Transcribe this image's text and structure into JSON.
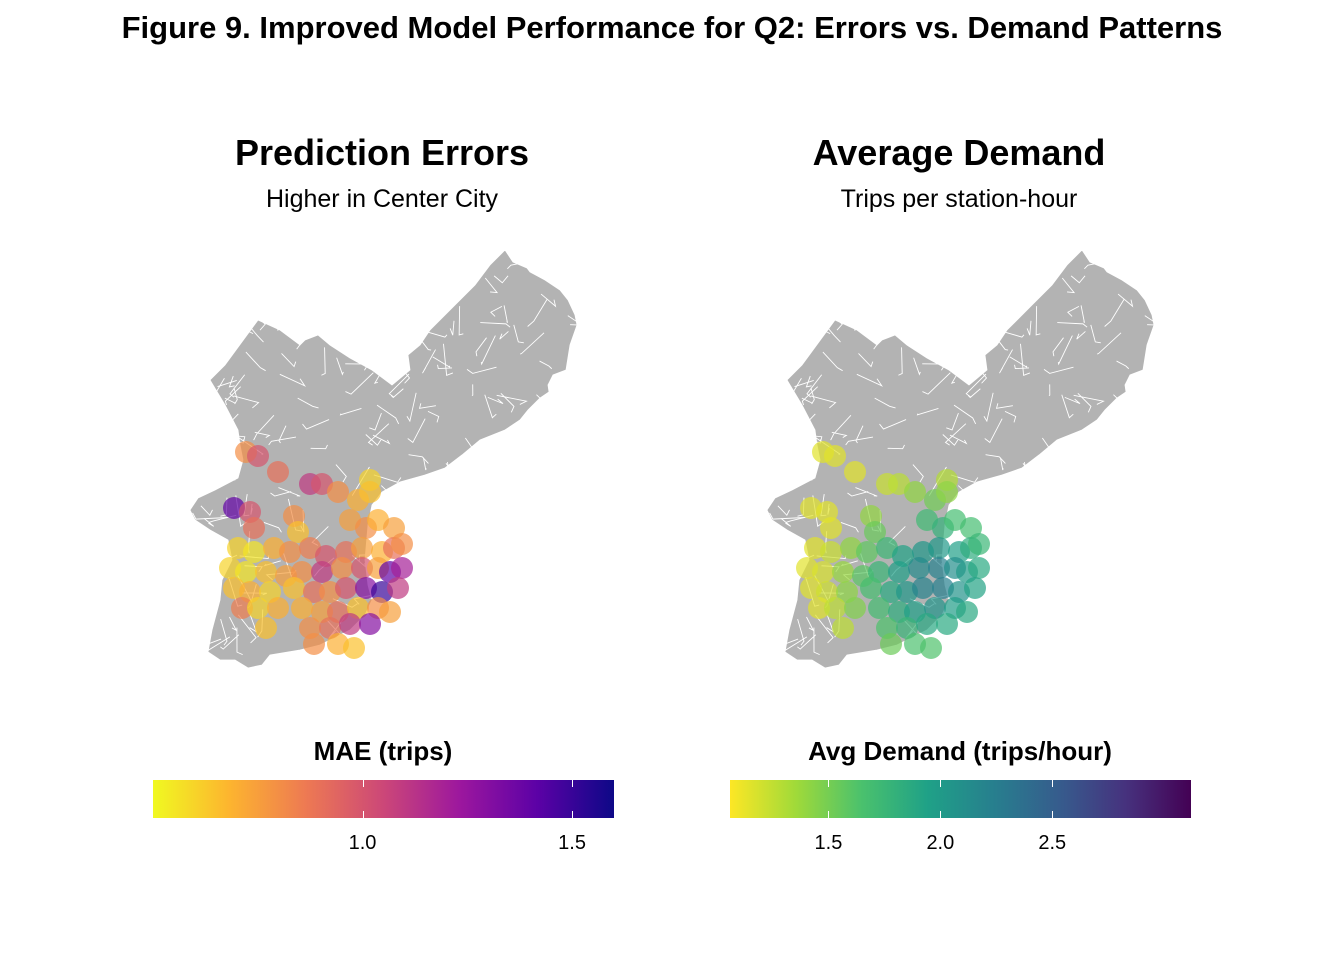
{
  "figure_title": "Figure 9. Improved Model Performance for Q2: Errors vs. Demand Patterns",
  "chart_data": [
    {
      "type": "map",
      "title": "Prediction Errors",
      "subtitle": "Higher in Center City",
      "region": "Philadelphia census tracts (gray, white borders)",
      "legend": {
        "title": "MAE (trips)",
        "palette": "plasma (reversed)",
        "colors": [
          "#f0f921",
          "#fdb42f",
          "#ed7953",
          "#cc4778",
          "#9c179e",
          "#5c01a6",
          "#0d0887"
        ],
        "range": [
          0.5,
          1.6
        ],
        "ticks": [
          "1.0",
          "1.5"
        ],
        "tick_values": [
          1.0,
          1.5
        ],
        "placement": "bottom"
      },
      "points_note": "Station points mostly orange/yellow (MAE ~0.6-0.9); highest (purple, ~1.3-1.5) in Center City east",
      "points": [
        {
          "x": 0.14,
          "y": 0.63,
          "v": 0.8
        },
        {
          "x": 0.17,
          "y": 0.64,
          "v": 1.0
        },
        {
          "x": 0.22,
          "y": 0.68,
          "v": 0.9
        },
        {
          "x": 0.3,
          "y": 0.71,
          "v": 1.1
        },
        {
          "x": 0.33,
          "y": 0.71,
          "v": 1.0
        },
        {
          "x": 0.37,
          "y": 0.73,
          "v": 0.8
        },
        {
          "x": 0.42,
          "y": 0.75,
          "v": 0.7
        },
        {
          "x": 0.45,
          "y": 0.7,
          "v": 0.6
        },
        {
          "x": 0.45,
          "y": 0.73,
          "v": 0.65
        },
        {
          "x": 0.11,
          "y": 0.77,
          "v": 1.4
        },
        {
          "x": 0.15,
          "y": 0.78,
          "v": 1.0
        },
        {
          "x": 0.16,
          "y": 0.82,
          "v": 0.9
        },
        {
          "x": 0.26,
          "y": 0.79,
          "v": 0.8
        },
        {
          "x": 0.27,
          "y": 0.83,
          "v": 0.65
        },
        {
          "x": 0.4,
          "y": 0.8,
          "v": 0.75
        },
        {
          "x": 0.44,
          "y": 0.82,
          "v": 0.8
        },
        {
          "x": 0.47,
          "y": 0.8,
          "v": 0.7
        },
        {
          "x": 0.51,
          "y": 0.82,
          "v": 0.75
        },
        {
          "x": 0.12,
          "y": 0.87,
          "v": 0.6
        },
        {
          "x": 0.16,
          "y": 0.88,
          "v": 0.55
        },
        {
          "x": 0.21,
          "y": 0.87,
          "v": 0.7
        },
        {
          "x": 0.25,
          "y": 0.88,
          "v": 0.8
        },
        {
          "x": 0.3,
          "y": 0.87,
          "v": 0.85
        },
        {
          "x": 0.34,
          "y": 0.89,
          "v": 1.0
        },
        {
          "x": 0.39,
          "y": 0.88,
          "v": 0.9
        },
        {
          "x": 0.43,
          "y": 0.87,
          "v": 0.75
        },
        {
          "x": 0.48,
          "y": 0.88,
          "v": 0.7
        },
        {
          "x": 0.51,
          "y": 0.87,
          "v": 0.9
        },
        {
          "x": 0.53,
          "y": 0.86,
          "v": 0.8
        },
        {
          "x": 0.1,
          "y": 0.92,
          "v": 0.6
        },
        {
          "x": 0.14,
          "y": 0.93,
          "v": 0.55
        },
        {
          "x": 0.19,
          "y": 0.93,
          "v": 0.65
        },
        {
          "x": 0.24,
          "y": 0.94,
          "v": 0.75
        },
        {
          "x": 0.28,
          "y": 0.93,
          "v": 0.8
        },
        {
          "x": 0.33,
          "y": 0.93,
          "v": 1.1
        },
        {
          "x": 0.38,
          "y": 0.92,
          "v": 0.8
        },
        {
          "x": 0.43,
          "y": 0.92,
          "v": 1.0
        },
        {
          "x": 0.47,
          "y": 0.92,
          "v": 0.75
        },
        {
          "x": 0.5,
          "y": 0.93,
          "v": 1.4
        },
        {
          "x": 0.53,
          "y": 0.92,
          "v": 1.2
        },
        {
          "x": 0.11,
          "y": 0.97,
          "v": 0.65
        },
        {
          "x": 0.15,
          "y": 0.98,
          "v": 0.7
        },
        {
          "x": 0.2,
          "y": 0.98,
          "v": 0.6
        },
        {
          "x": 0.26,
          "y": 0.97,
          "v": 0.65
        },
        {
          "x": 0.31,
          "y": 0.98,
          "v": 0.9
        },
        {
          "x": 0.35,
          "y": 0.98,
          "v": 0.8
        },
        {
          "x": 0.39,
          "y": 0.97,
          "v": 1.0
        },
        {
          "x": 0.44,
          "y": 0.97,
          "v": 1.3
        },
        {
          "x": 0.48,
          "y": 0.98,
          "v": 1.5
        },
        {
          "x": 0.52,
          "y": 0.97,
          "v": 1.1
        },
        {
          "x": 0.13,
          "y": 1.02,
          "v": 0.85
        },
        {
          "x": 0.17,
          "y": 1.02,
          "v": 0.6
        },
        {
          "x": 0.22,
          "y": 1.02,
          "v": 0.7
        },
        {
          "x": 0.28,
          "y": 1.02,
          "v": 0.7
        },
        {
          "x": 0.33,
          "y": 1.03,
          "v": 0.75
        },
        {
          "x": 0.37,
          "y": 1.03,
          "v": 0.9
        },
        {
          "x": 0.42,
          "y": 1.02,
          "v": 0.65
        },
        {
          "x": 0.47,
          "y": 1.02,
          "v": 0.8
        },
        {
          "x": 0.5,
          "y": 1.03,
          "v": 0.75
        },
        {
          "x": 0.19,
          "y": 1.07,
          "v": 0.65
        },
        {
          "x": 0.3,
          "y": 1.07,
          "v": 0.8
        },
        {
          "x": 0.35,
          "y": 1.07,
          "v": 0.9
        },
        {
          "x": 0.4,
          "y": 1.06,
          "v": 1.1
        },
        {
          "x": 0.45,
          "y": 1.06,
          "v": 1.3
        },
        {
          "x": 0.31,
          "y": 1.11,
          "v": 0.8
        },
        {
          "x": 0.37,
          "y": 1.11,
          "v": 0.7
        },
        {
          "x": 0.41,
          "y": 1.12,
          "v": 0.65
        }
      ]
    },
    {
      "type": "map",
      "title": "Average Demand",
      "subtitle": "Trips per station-hour",
      "region": "Philadelphia census tracts (gray, white borders)",
      "legend": {
        "title": "Avg Demand (trips/hour)",
        "palette": "viridis (reversed)",
        "colors": [
          "#fde725",
          "#a0da39",
          "#4ac16d",
          "#1fa187",
          "#277f8e",
          "#365c8d",
          "#46327e",
          "#440154"
        ],
        "range": [
          1.06,
          3.12
        ],
        "ticks": [
          "1.5",
          "2.0",
          "2.5"
        ],
        "tick_values": [
          1.5,
          2.0,
          2.5
        ],
        "placement": "bottom"
      },
      "points_note": "Yellow/light-green (~1.1-1.6) at edges; teal (~2.0-2.4) in Center City core"
    }
  ]
}
